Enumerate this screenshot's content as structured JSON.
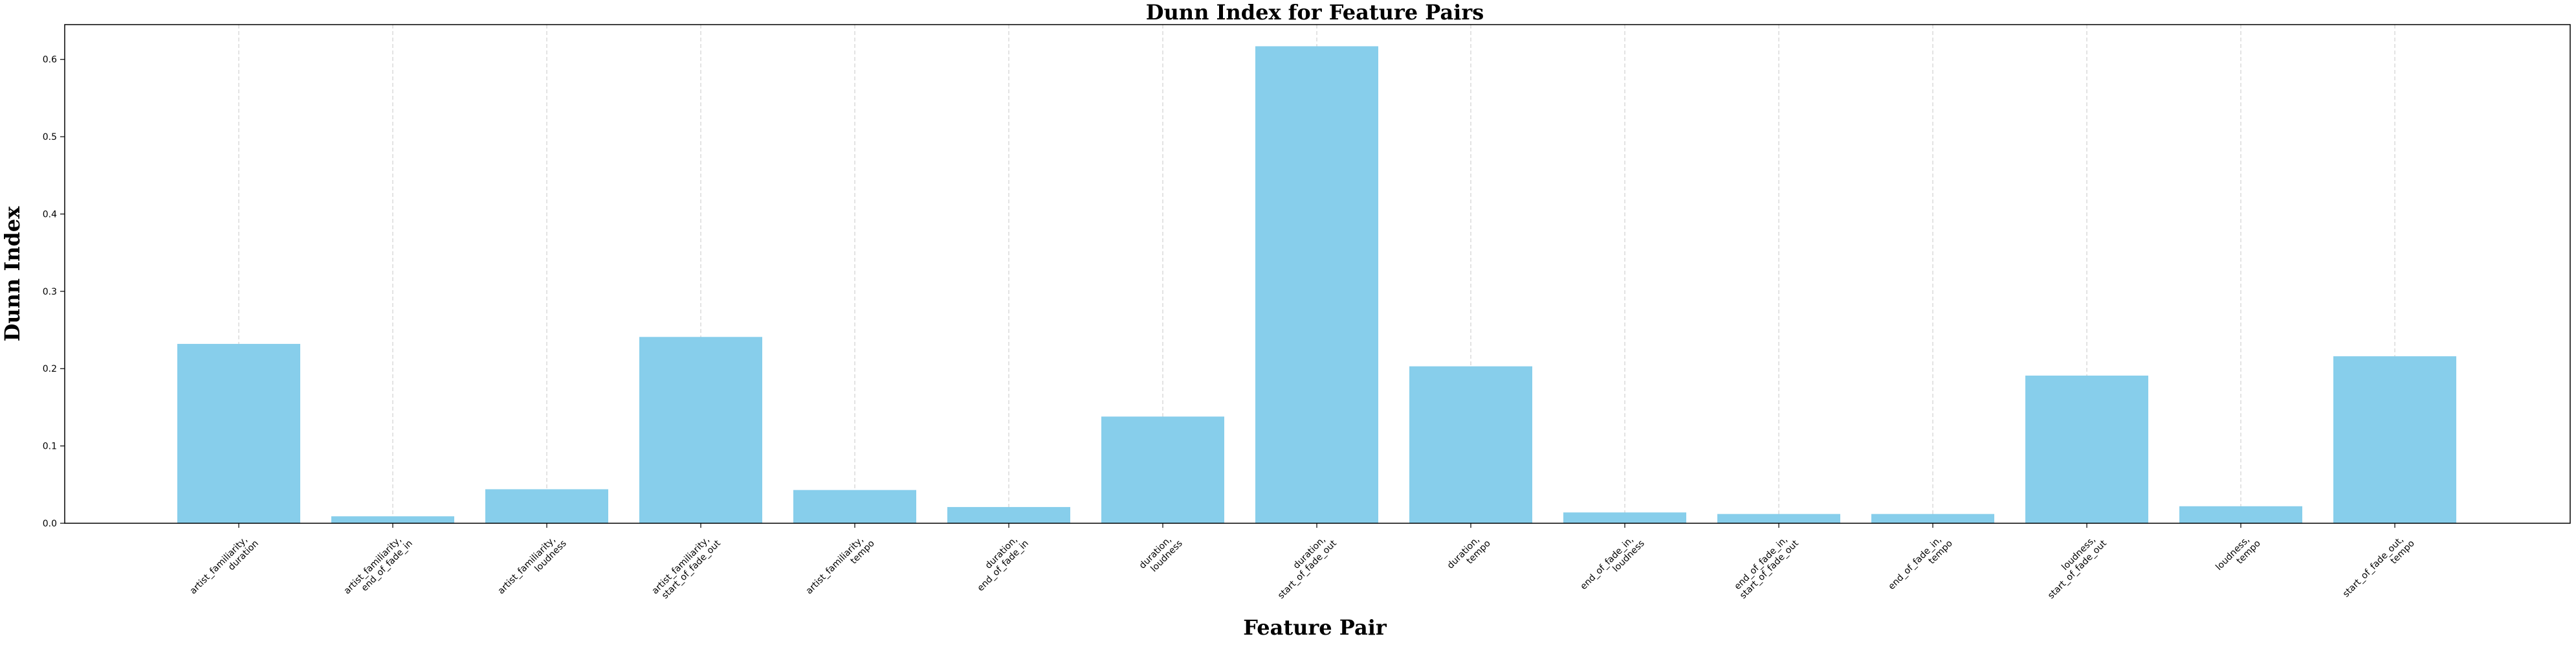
{
  "chart_data": {
    "type": "bar",
    "title": "Dunn Index for Feature Pairs",
    "xlabel": "Feature Pair",
    "ylabel": "Dunn Index",
    "ylim": [
      0,
      0.645
    ],
    "yticks": [
      "0.0",
      "0.1",
      "0.2",
      "0.3",
      "0.4",
      "0.5",
      "0.6"
    ],
    "grid": "vertical dashed",
    "bar_color": "#87CEEB",
    "categories": [
      [
        "artist_familiarity,",
        "duration"
      ],
      [
        "artist_familiarity,",
        "end_of_fade_in"
      ],
      [
        "artist_familiarity,",
        "loudness"
      ],
      [
        "artist_familiarity,",
        "start_of_fade_out"
      ],
      [
        "artist_familiarity,",
        "tempo"
      ],
      [
        "duration,",
        "end_of_fade_in"
      ],
      [
        "duration,",
        "loudness"
      ],
      [
        "duration,",
        "start_of_fade_out"
      ],
      [
        "duration,",
        "tempo"
      ],
      [
        "end_of_fade_in,",
        "loudness"
      ],
      [
        "end_of_fade_in,",
        "start_of_fade_out"
      ],
      [
        "end_of_fade_in,",
        "tempo"
      ],
      [
        "loudness,",
        "start_of_fade_out"
      ],
      [
        "loudness,",
        "tempo"
      ],
      [
        "start_of_fade_out,",
        "tempo"
      ]
    ],
    "values": [
      0.232,
      0.009,
      0.044,
      0.241,
      0.043,
      0.021,
      0.138,
      0.617,
      0.203,
      0.014,
      0.012,
      0.012,
      0.191,
      0.022,
      0.216
    ]
  }
}
